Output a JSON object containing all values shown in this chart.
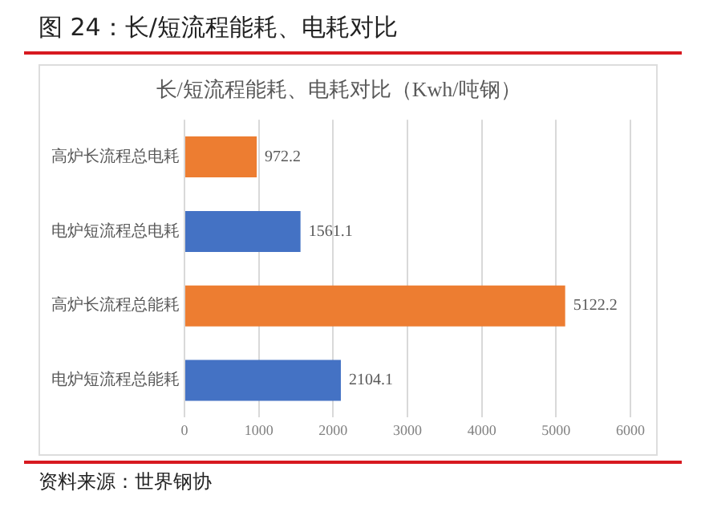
{
  "chart_data": {
    "type": "bar",
    "orientation": "horizontal",
    "title": "图 24：长/短流程能耗、电耗对比",
    "subtitle": "长/短流程能耗、电耗对比（Kwh/吨钢）",
    "categories": [
      "高炉长流程总电耗",
      "电炉短流程总电耗",
      "高炉长流程总能耗",
      "电炉短流程总能耗"
    ],
    "values": [
      972.2,
      1561.1,
      5122.2,
      2104.1
    ],
    "colors": [
      "#ed7d31",
      "#4472c4",
      "#ed7d31",
      "#4472c4"
    ],
    "xlim": [
      0,
      6000
    ],
    "xticks": [
      0,
      1000,
      2000,
      3000,
      4000,
      5000,
      6000
    ],
    "grid": "x",
    "legend": false,
    "data_labels": true,
    "annotations": [
      "资料来源：世界钢协"
    ]
  }
}
